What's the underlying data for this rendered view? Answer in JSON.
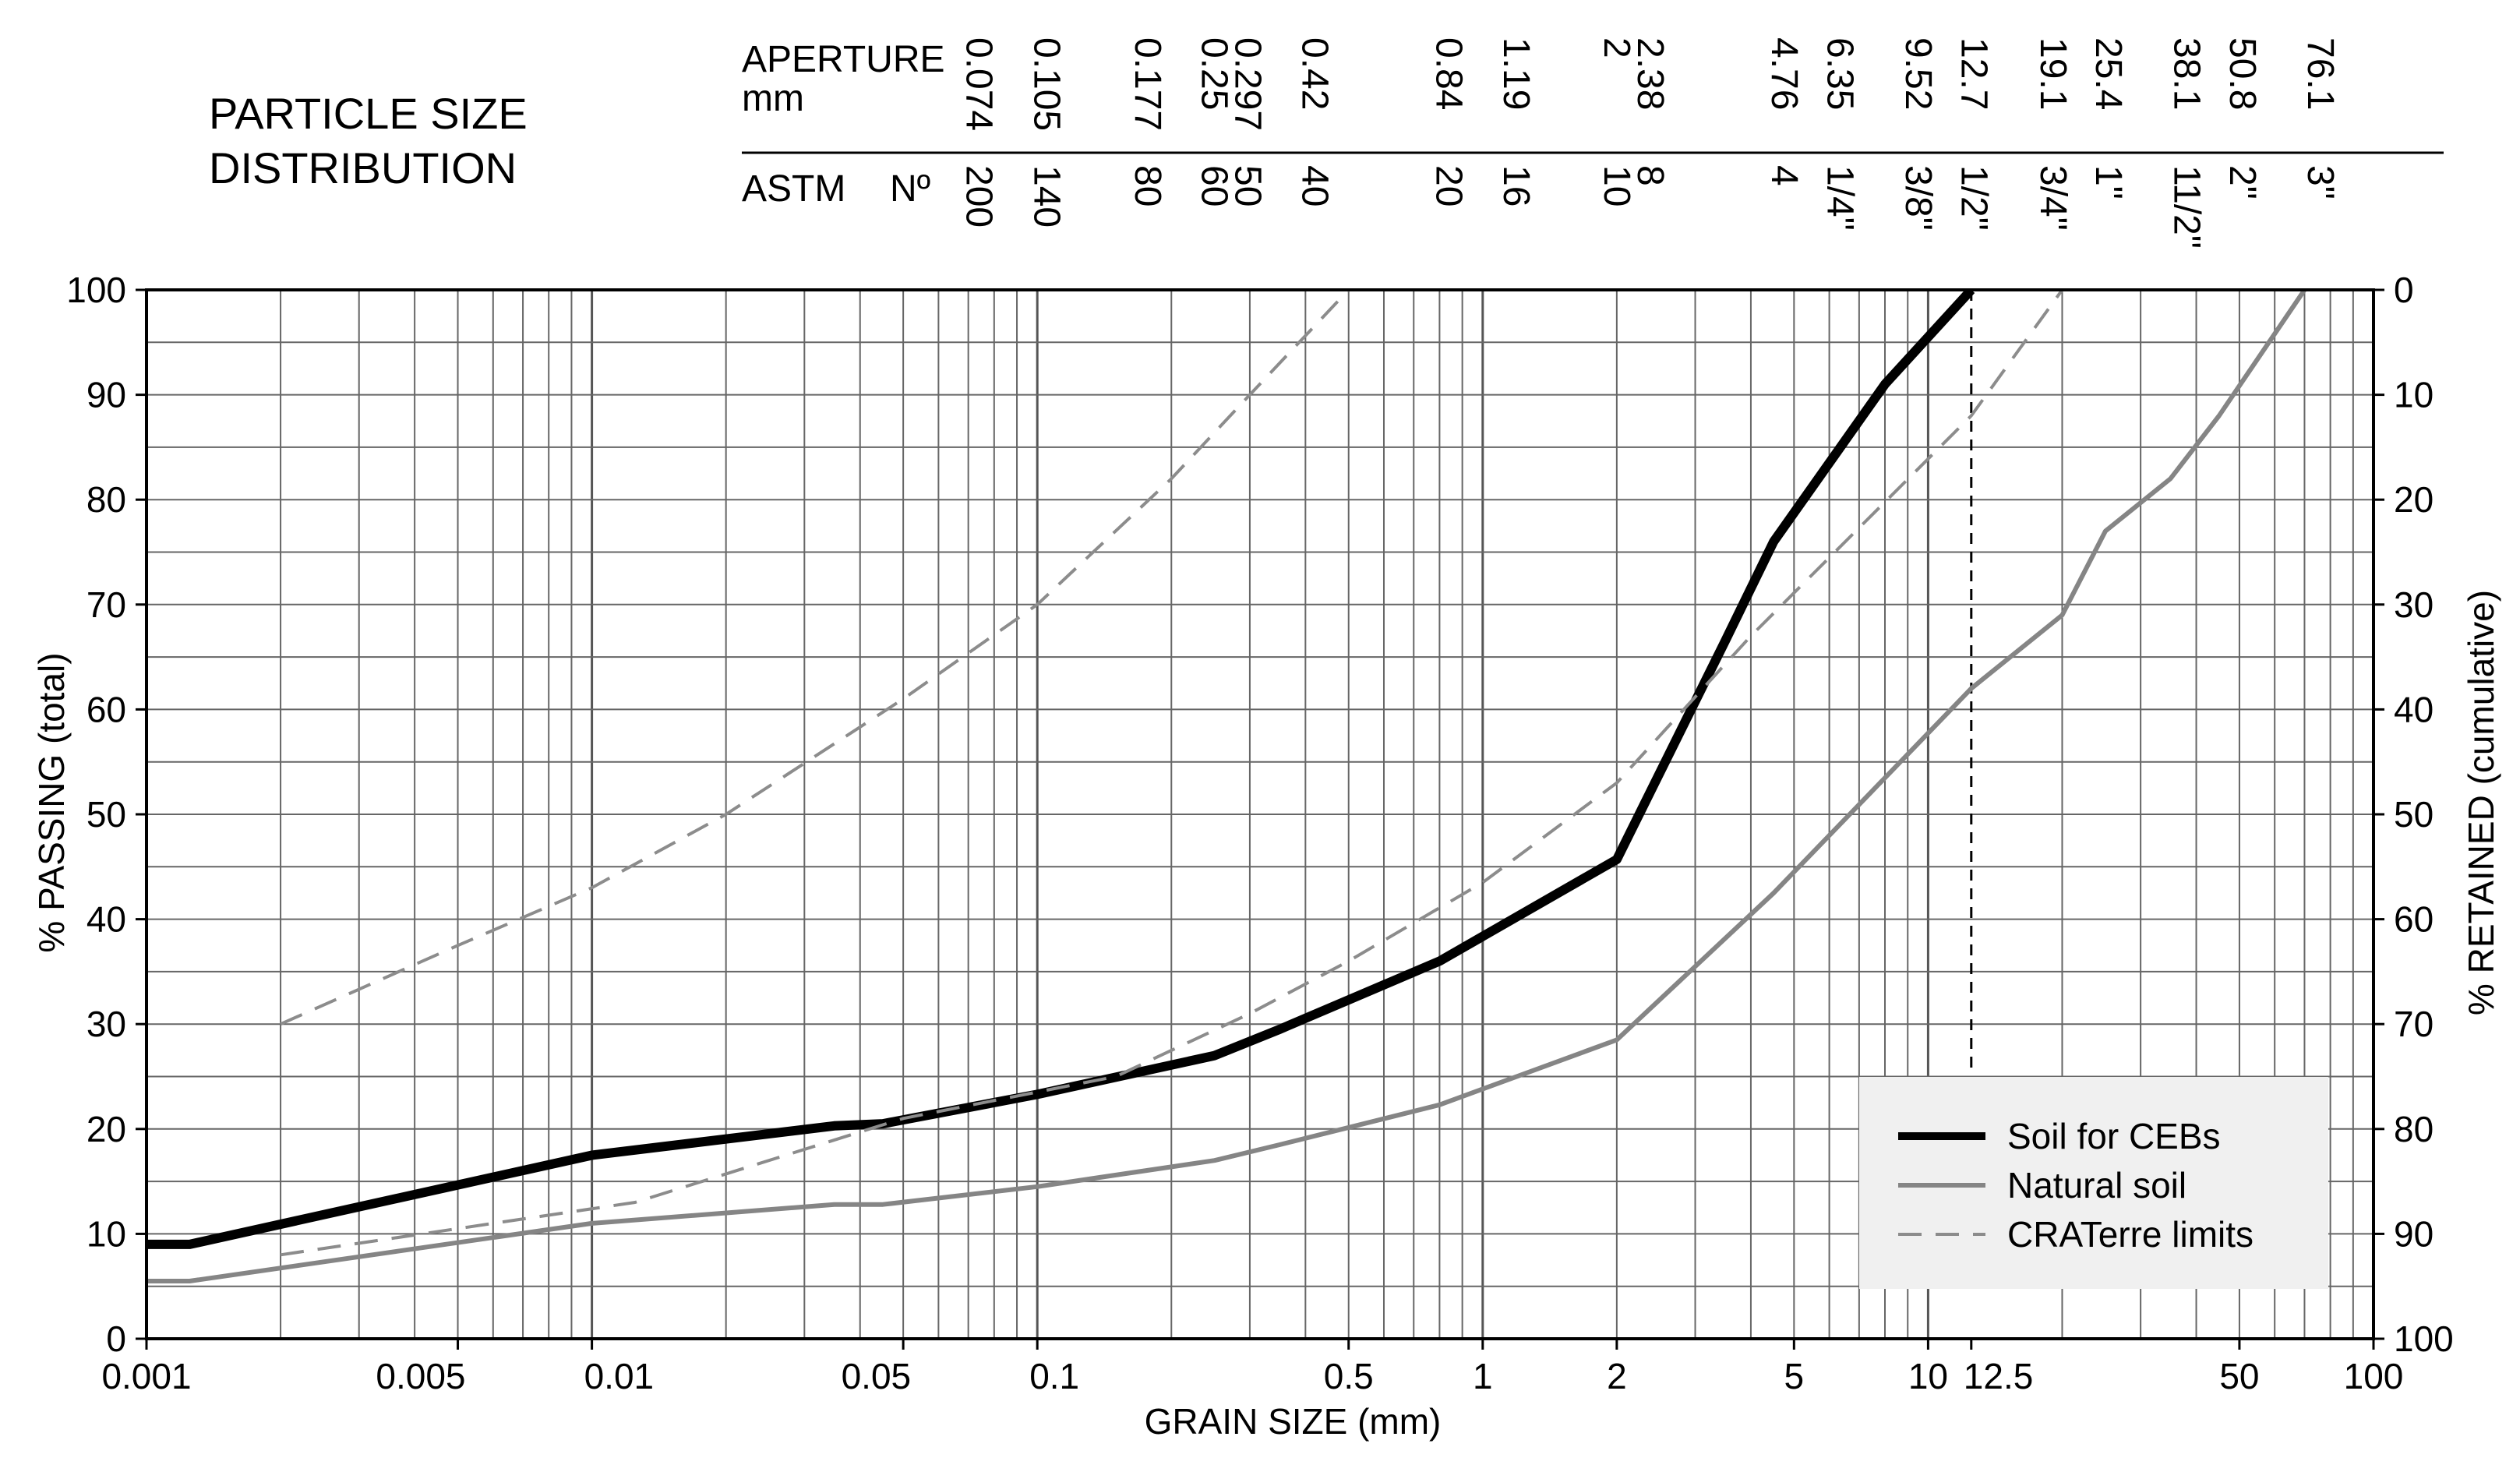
{
  "chart_data": {
    "type": "line",
    "title": [
      "PARTICLE SIZE",
      "DISTRIBUTION"
    ],
    "xlabel": "GRAIN SIZE (mm)",
    "ylabel": "% PASSING (total)",
    "y2label": "% RETAINED (cumulative)",
    "xscale": "log",
    "xlim": [
      0.001,
      100
    ],
    "ylim": [
      0,
      100
    ],
    "grid": true,
    "legend_position": "bottom-right",
    "x_tick_labels": [
      {
        "v": 0.001,
        "t": "0.001"
      },
      {
        "v": 0.005,
        "t": "0.005"
      },
      {
        "v": 0.01,
        "t": "0.01"
      },
      {
        "v": 0.05,
        "t": "0.05"
      },
      {
        "v": 0.1,
        "t": "0.1"
      },
      {
        "v": 0.5,
        "t": "0.5"
      },
      {
        "v": 1,
        "t": "1"
      },
      {
        "v": 2,
        "t": "2"
      },
      {
        "v": 5,
        "t": "5"
      },
      {
        "v": 10,
        "t": "10"
      },
      {
        "v": 12.5,
        "t": "12.5"
      },
      {
        "v": 50,
        "t": "50"
      },
      {
        "v": 100,
        "t": "100"
      }
    ],
    "y_ticks": [
      0,
      10,
      20,
      30,
      40,
      50,
      60,
      70,
      80,
      90,
      100
    ],
    "y2_ticks": [
      100,
      90,
      80,
      70,
      60,
      50,
      40,
      30,
      20,
      10,
      0
    ],
    "aperture_header": {
      "aperture_label": [
        "APERTURE",
        "mm"
      ],
      "astm_label": "ASTM",
      "no_label": "Nº",
      "sieves": [
        {
          "v": 0.074,
          "ap": "0.074",
          "astm": "200"
        },
        {
          "v": 0.105,
          "ap": "0.105",
          "astm": "140"
        },
        {
          "v": 0.177,
          "ap": "0.177",
          "astm": "80"
        },
        {
          "v": 0.25,
          "ap": "0.25",
          "astm": "60"
        },
        {
          "v": 0.297,
          "ap": "0.297",
          "astm": "50"
        },
        {
          "v": 0.42,
          "ap": "0.42",
          "astm": "40"
        },
        {
          "v": 0.84,
          "ap": "0.84",
          "astm": "20"
        },
        {
          "v": 1.19,
          "ap": "1.19",
          "astm": "16"
        },
        {
          "v": 2,
          "ap": "2",
          "astm": "10"
        },
        {
          "v": 2.38,
          "ap": "2.38",
          "astm": "8"
        },
        {
          "v": 4.76,
          "ap": "4.76",
          "astm": "4"
        },
        {
          "v": 6.35,
          "ap": "6.35",
          "astm": "1/4\""
        },
        {
          "v": 9.52,
          "ap": "9.52",
          "astm": "3/8\""
        },
        {
          "v": 12.7,
          "ap": "12.7",
          "astm": "1/2\""
        },
        {
          "v": 19.1,
          "ap": "19.1",
          "astm": "3/4\""
        },
        {
          "v": 25.4,
          "ap": "25.4",
          "astm": "1\""
        },
        {
          "v": 38.1,
          "ap": "38.1",
          "astm": "11/2\""
        },
        {
          "v": 50.8,
          "ap": "50.8",
          "astm": "2\""
        },
        {
          "v": 76.1,
          "ap": "76.1",
          "astm": "3\""
        }
      ]
    },
    "reference_line_x": 12.5,
    "series": [
      {
        "name": "Soil for CEBs",
        "color": "#000000",
        "style": "solid-thick",
        "points": [
          [
            0.001,
            9
          ],
          [
            0.00125,
            9
          ],
          [
            0.01,
            17.5
          ],
          [
            0.035,
            20.3
          ],
          [
            0.045,
            20.5
          ],
          [
            0.1,
            23.3
          ],
          [
            0.25,
            27
          ],
          [
            0.35,
            29.5
          ],
          [
            0.8,
            36
          ],
          [
            2,
            45.7
          ],
          [
            3.5,
            66.5
          ],
          [
            4.5,
            76
          ],
          [
            8,
            91
          ],
          [
            12.5,
            100
          ]
        ]
      },
      {
        "name": "Natural soil",
        "color": "#858585",
        "style": "solid",
        "points": [
          [
            0.001,
            5.5
          ],
          [
            0.00125,
            5.5
          ],
          [
            0.01,
            11
          ],
          [
            0.035,
            12.8
          ],
          [
            0.045,
            12.8
          ],
          [
            0.1,
            14.5
          ],
          [
            0.25,
            17
          ],
          [
            0.35,
            18.5
          ],
          [
            0.8,
            22.3
          ],
          [
            2,
            28.5
          ],
          [
            4.5,
            42.5
          ],
          [
            12.5,
            62
          ],
          [
            20,
            69
          ],
          [
            25,
            77
          ],
          [
            35,
            82
          ],
          [
            45,
            88
          ],
          [
            70,
            100
          ]
        ]
      },
      {
        "name": "CRATerre limits",
        "color": "#8c8c8c",
        "style": "dashed",
        "points": [
          [
            0.002,
            8
          ],
          [
            0.0125,
            13
          ],
          [
            0.05,
            21
          ],
          [
            0.15,
            25
          ],
          [
            0.3,
            31
          ],
          [
            0.5,
            36
          ],
          [
            1,
            43.5
          ],
          [
            2,
            53
          ],
          [
            4,
            67
          ],
          [
            12.5,
            88
          ],
          [
            20,
            100
          ]
        ]
      },
      {
        "name": "",
        "color": "#8c8c8c",
        "style": "dashed",
        "points": [
          [
            0.002,
            30
          ],
          [
            0.005,
            37.5
          ],
          [
            0.01,
            43
          ],
          [
            0.02,
            50
          ],
          [
            0.05,
            61
          ],
          [
            0.1,
            70
          ],
          [
            0.2,
            82
          ],
          [
            0.3,
            90
          ],
          [
            0.5,
            100
          ]
        ]
      }
    ]
  }
}
